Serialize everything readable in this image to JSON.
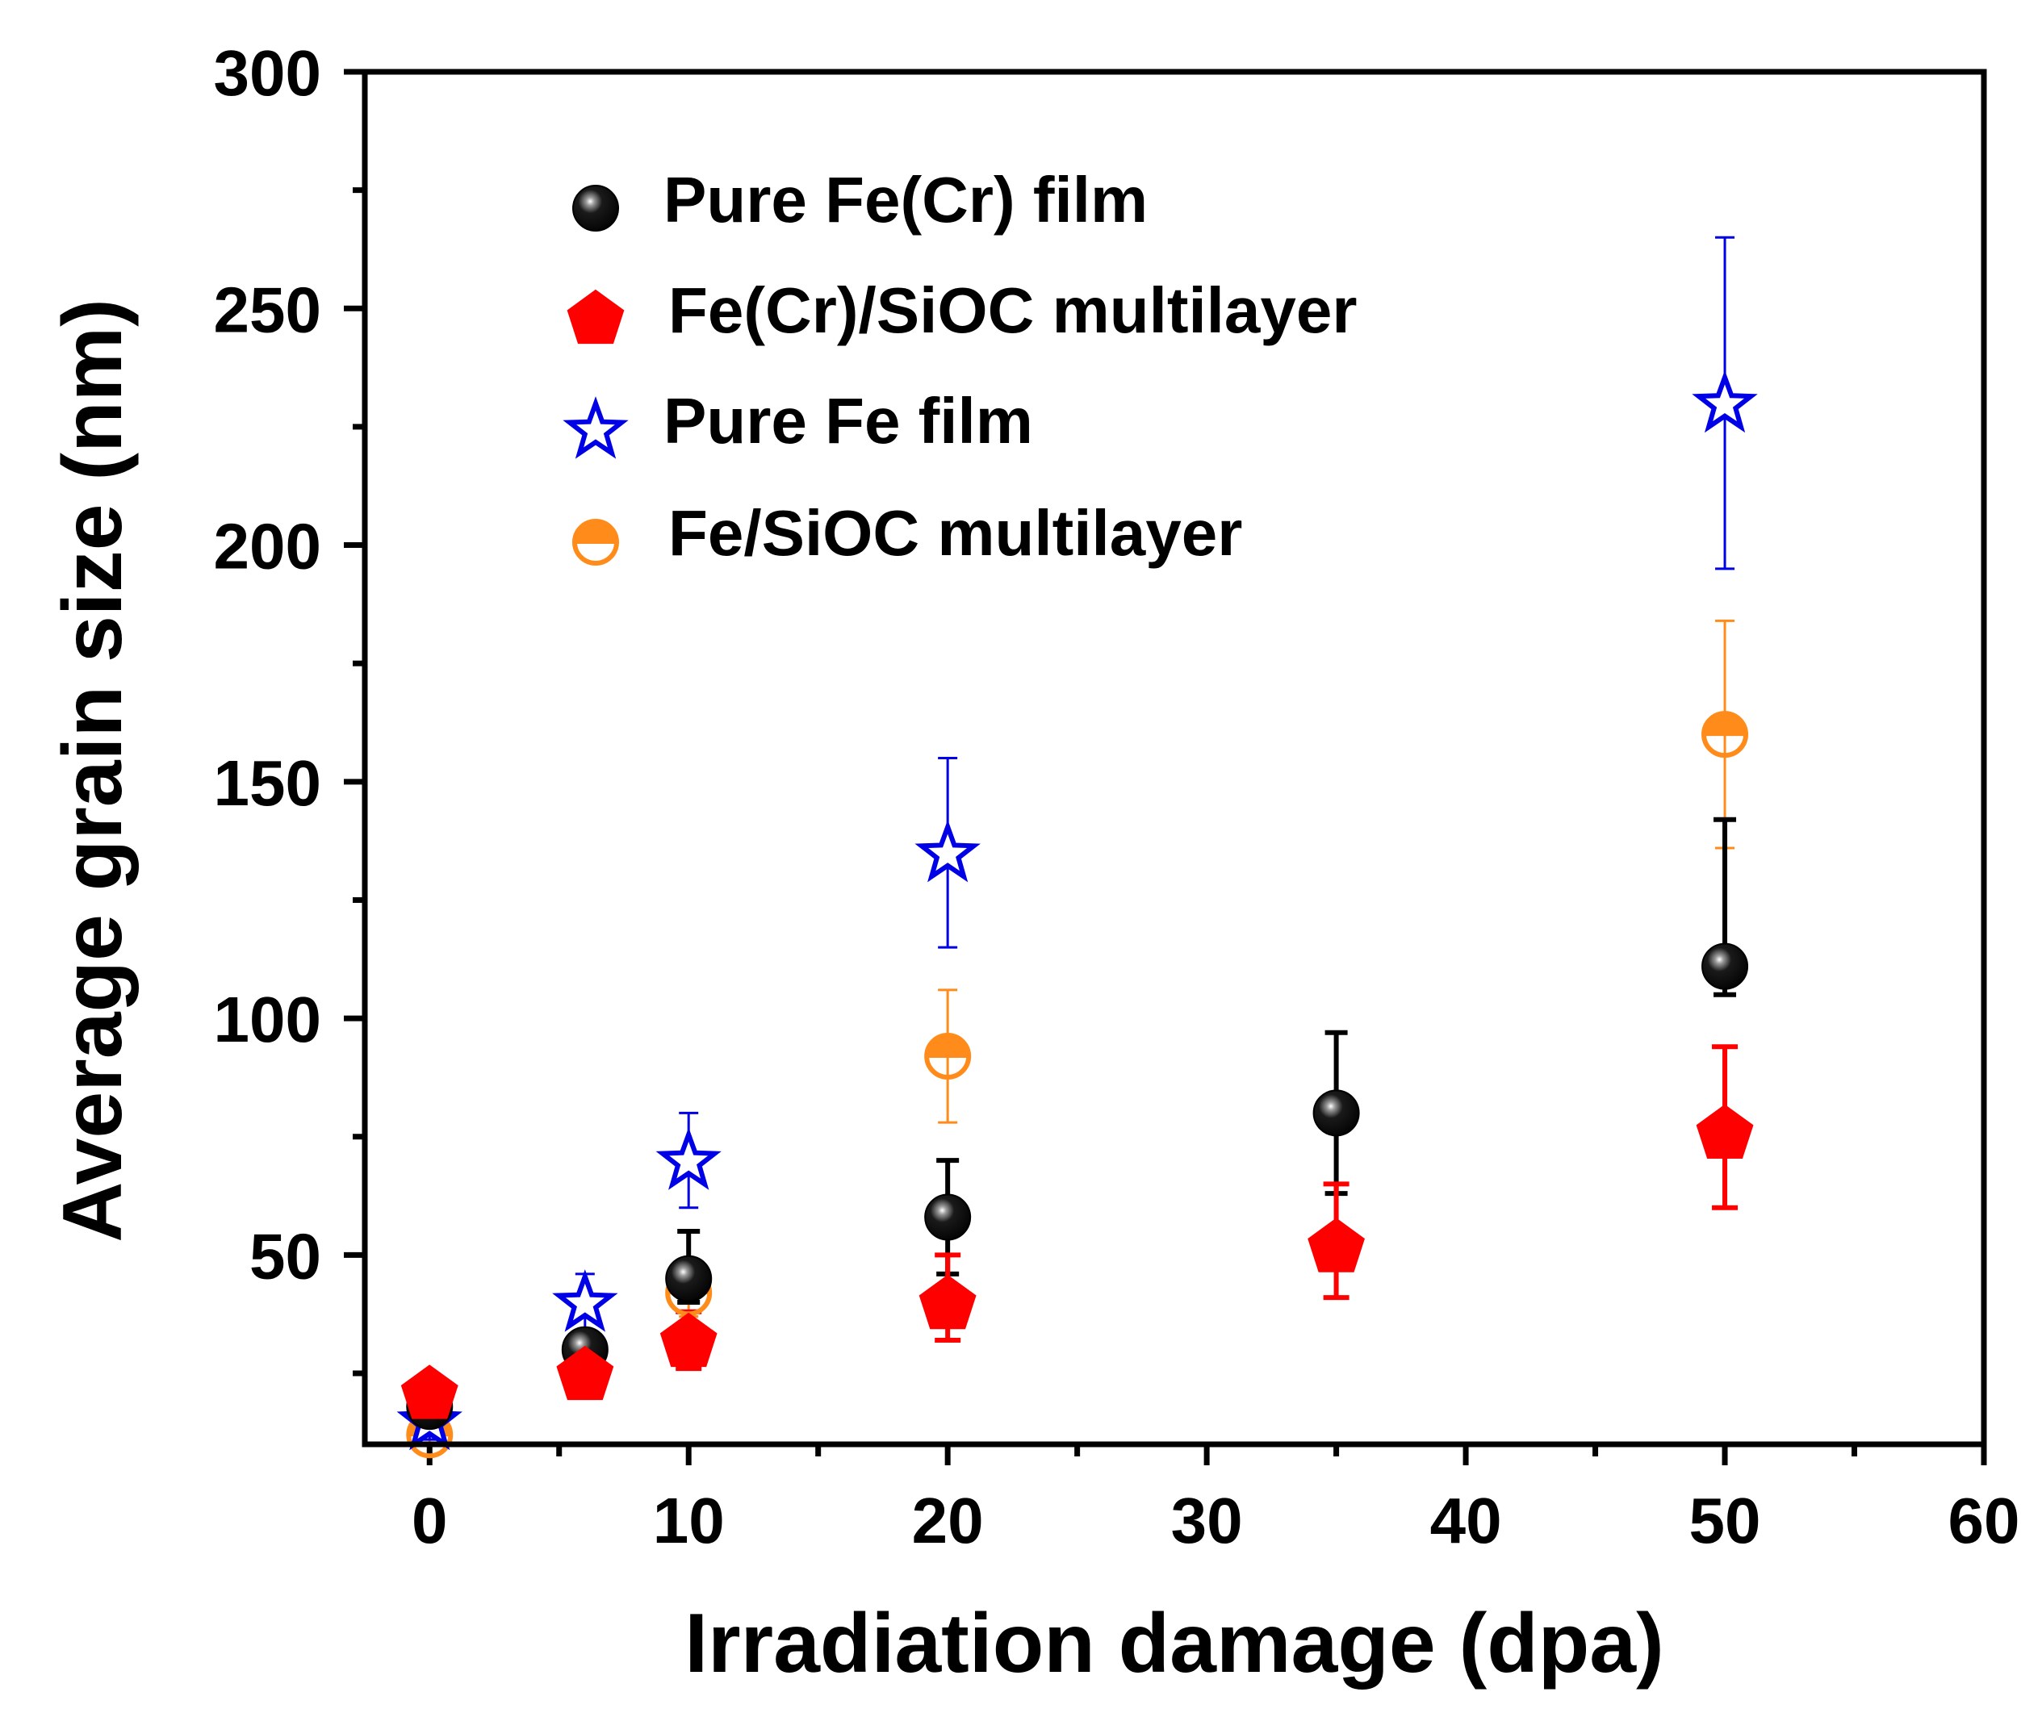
{
  "chart_data": {
    "type": "scatter",
    "xlabel": "Irradiation damage (dpa)",
    "ylabel": "Average grain size (nm)",
    "xlim": [
      -2.5,
      60
    ],
    "ylim": [
      10,
      300
    ],
    "x_major_ticks": [
      0,
      10,
      20,
      30,
      40,
      50,
      60
    ],
    "x_minor_ticks": [
      5,
      15,
      25,
      35,
      45,
      55
    ],
    "y_major_ticks": [
      50,
      100,
      150,
      200,
      250,
      300
    ],
    "y_minor_ticks": [
      25,
      75,
      125,
      175,
      225,
      275
    ],
    "x_tick_labels": [
      "0",
      "10",
      "20",
      "30",
      "40",
      "50",
      "60"
    ],
    "y_tick_labels": [
      "50",
      "100",
      "150",
      "200",
      "250",
      "300"
    ],
    "legend_position": "top-left",
    "series": [
      {
        "name": "Pure Fe(Cr) film",
        "marker": "sphere",
        "color": "#000000",
        "x": [
          0,
          6,
          10,
          20,
          35,
          50
        ],
        "y": [
          18,
          30,
          45,
          58,
          80,
          111
        ],
        "err_low": [
          2,
          3,
          5,
          12,
          17,
          6
        ],
        "err_high": [
          2,
          3,
          10,
          12,
          17,
          31
        ]
      },
      {
        "name": "Fe(Cr)/SiOC multilayer",
        "marker": "pentagon",
        "color": "#ff0000",
        "x": [
          0,
          6,
          10,
          20,
          35,
          50
        ],
        "y": [
          21,
          25,
          32,
          40,
          52,
          76
        ],
        "err_low": [
          2,
          5,
          6,
          8,
          11,
          16
        ],
        "err_high": [
          2,
          5,
          6,
          10,
          13,
          18
        ]
      },
      {
        "name": "Pure Fe film",
        "marker": "star",
        "color": "#0000e6",
        "x": [
          0,
          6,
          10,
          20,
          50
        ],
        "y": [
          15,
          40,
          70,
          135,
          230
        ],
        "err_low": [
          4,
          6,
          10,
          20,
          35
        ],
        "err_high": [
          4,
          6,
          10,
          20,
          35
        ]
      },
      {
        "name": "Fe/SiOC multilayer",
        "marker": "half-circle",
        "color": "#ff8c1a",
        "x": [
          0,
          10,
          20,
          50
        ],
        "y": [
          12,
          42,
          92,
          160
        ],
        "err_low": [
          2,
          5,
          14,
          24
        ],
        "err_high": [
          2,
          5,
          14,
          24
        ]
      }
    ]
  }
}
